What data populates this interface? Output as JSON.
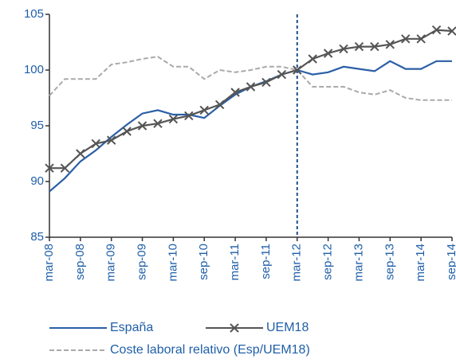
{
  "chart_data": {
    "type": "line",
    "categories": [
      "mar-08",
      null,
      "sep-08",
      null,
      "mar-09",
      null,
      "sep-09",
      null,
      "mar-10",
      null,
      "sep-10",
      null,
      "mar-11",
      null,
      "sep-11",
      null,
      "mar-12",
      null,
      "sep-12",
      null,
      "mar-13",
      null,
      "sep-13",
      null,
      "mar-14",
      null,
      "sep-14"
    ],
    "series": [
      {
        "name": "España",
        "color": "#2b5fa6",
        "values": [
          89.1,
          90.3,
          91.8,
          92.8,
          94.0,
          95.1,
          96.1,
          96.4,
          96.0,
          96.0,
          95.7,
          96.8,
          97.8,
          98.5,
          99.0,
          99.6,
          100.0,
          99.6,
          99.8,
          100.3,
          100.1,
          99.9,
          100.8,
          100.1,
          100.1,
          100.8,
          100.8
        ]
      },
      {
        "name": "UEM18",
        "color": "#555555",
        "marker": "x",
        "values": [
          91.2,
          91.2,
          92.5,
          93.4,
          93.7,
          94.5,
          95.0,
          95.2,
          95.6,
          95.9,
          96.4,
          96.9,
          98.0,
          98.5,
          98.9,
          99.6,
          100.0,
          101.0,
          101.5,
          101.9,
          102.1,
          102.1,
          102.3,
          102.8,
          102.8,
          103.6,
          103.5
        ]
      },
      {
        "name": "Coste laboral relativo (Esp/UEM18)",
        "color": "#aaaaaa",
        "dashed": true,
        "values": [
          97.7,
          99.2,
          99.2,
          99.2,
          100.5,
          100.7,
          101.0,
          101.2,
          100.3,
          100.3,
          99.2,
          100.0,
          99.8,
          100.0,
          100.3,
          100.3,
          100.0,
          98.5,
          98.5,
          98.5,
          98.0,
          97.8,
          98.2,
          97.5,
          97.3,
          97.3,
          97.3
        ]
      }
    ],
    "vertical_line": "mar-12",
    "ylim": [
      85,
      105
    ],
    "yticks": [
      85,
      90,
      95,
      100,
      105
    ],
    "grid": false
  }
}
